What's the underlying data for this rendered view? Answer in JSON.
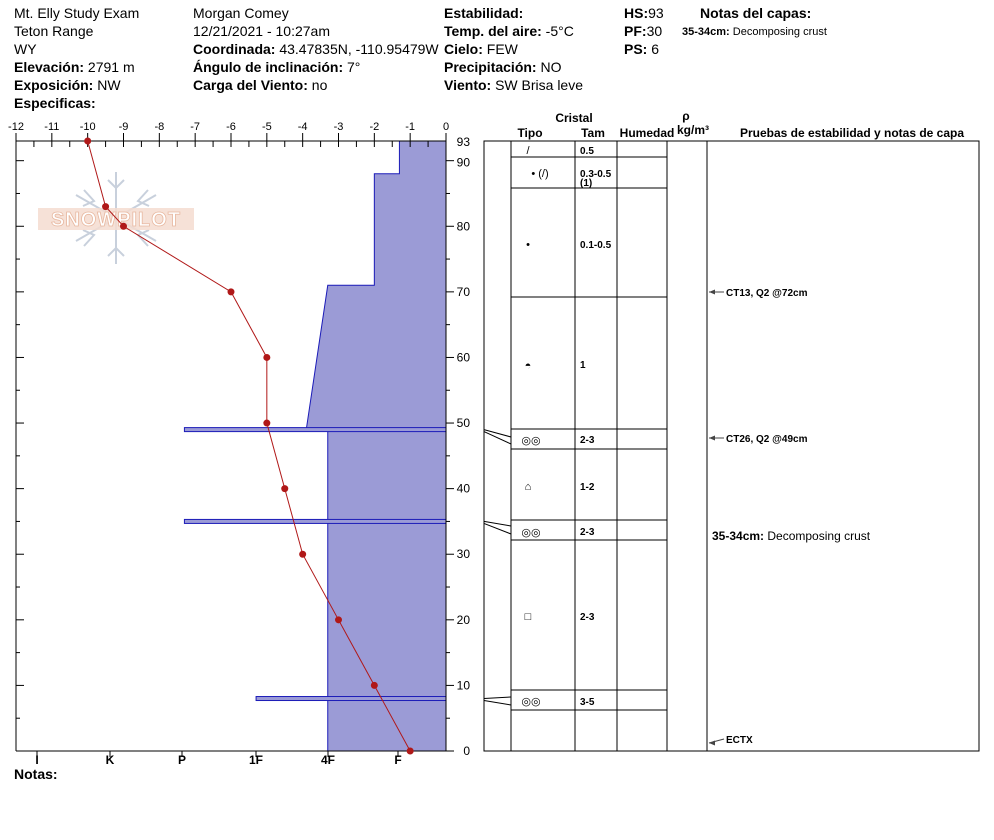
{
  "header": {
    "site": "Mt. Elly Study Exam",
    "range": "Teton Range",
    "state": "WY",
    "elevation_label": "Elevación:",
    "elevation_value": "2791 m",
    "aspect_label": "Exposición:",
    "aspect_value": "NW",
    "specifics_label": "Especificas:",
    "observer": "Morgan Comey",
    "datetime": "12/21/2021 - 10:27am",
    "coord_label": "Coordinada:",
    "coord_value": "43.47835N, -110.95479W",
    "slope_label": "Ángulo de inclinación:",
    "slope_value": "7°",
    "wind_load_label": "Carga del Viento:",
    "wind_load_value": "no",
    "stability_label": "Estabilidad:",
    "air_temp_label": "Temp. del aire:",
    "air_temp_value": "-5°C",
    "sky_label": "Cielo:",
    "sky_value": "FEW",
    "precip_label": "Precipitación:",
    "precip_value": "NO",
    "wind_label": "Viento:",
    "wind_value": "SW Brisa leve",
    "hs_label": "HS:",
    "hs_value": "93",
    "pf_label": "PF:",
    "pf_value": "30",
    "ps_label": "PS:",
    "ps_value": "6",
    "layer_notes_title": "Notas del capas:",
    "layer_notes_first": "35-34cm:",
    "layer_notes_first_text": "Decomposing crust"
  },
  "logo_text": "SNOWPILOT",
  "footer": {
    "notes_label": "Notas:"
  },
  "columns": {
    "crystal": "Cristal",
    "type": "Tipo",
    "size": "Tam",
    "moisture": "Humedad",
    "density_symbol": "ρ",
    "density_unit": "kg/m³",
    "tests_header": "Pruebas de estabilidad y notas de capa"
  },
  "chart_data": {
    "type": "snow_profile",
    "temperature_axis": {
      "ticks": [
        "-12",
        "-11",
        "-10",
        "-9",
        "-8",
        "-7",
        "-6",
        "-5",
        "-4",
        "-3",
        "-2",
        "-1",
        "0"
      ],
      "range": [
        -12,
        0
      ]
    },
    "hardness_axis": {
      "ticks": [
        "I",
        "K",
        "P",
        "1F",
        "4F",
        "F"
      ]
    },
    "height_axis": {
      "ticks": [
        "0",
        "10",
        "20",
        "30",
        "40",
        "50",
        "60",
        "70",
        "80",
        "90",
        "93"
      ],
      "range": [
        0,
        93
      ]
    },
    "temperature_profile": [
      {
        "h": 93,
        "t": -10.0
      },
      {
        "h": 83,
        "t": -9.5
      },
      {
        "h": 80,
        "t": -9.0
      },
      {
        "h": 70,
        "t": -6.0
      },
      {
        "h": 60,
        "t": -5.0
      },
      {
        "h": 50,
        "t": -5.0
      },
      {
        "h": 40,
        "t": -4.5
      },
      {
        "h": 30,
        "t": -4.0
      },
      {
        "h": 20,
        "t": -3.0
      },
      {
        "h": 10,
        "t": -2.0
      },
      {
        "h": 0,
        "t": -1.0
      }
    ],
    "hardness_profile": [
      {
        "top": 93,
        "bottom": 88,
        "t_top": -1.3,
        "t_bottom": -1.3
      },
      {
        "top": 88,
        "bottom": 71,
        "t_top": -2.0,
        "t_bottom": -2.0
      },
      {
        "top": 71,
        "bottom": 49,
        "t_top": -3.3,
        "t_bottom": -3.9
      },
      {
        "top": 49,
        "bottom": 0,
        "t_top": -3.3,
        "t_bottom": -3.3
      }
    ],
    "thin_layers": [
      {
        "h": 49,
        "t": -7.3
      },
      {
        "h": 35,
        "t": -7.3
      },
      {
        "h": 8,
        "t": -5.3
      }
    ],
    "layers": [
      {
        "top": 93,
        "bottom": 88,
        "type": "/",
        "size": "0.5"
      },
      {
        "top": 88,
        "bottom": 71,
        "type": "• (/)",
        "size": "0.3-0.5 (1)"
      },
      {
        "top": 71,
        "bottom": 50,
        "type": "•",
        "size": "0.1-0.5"
      },
      {
        "top": 50,
        "bottom": 49,
        "type": "◓",
        "size": "1"
      },
      {
        "top": 49,
        "bottom": 35,
        "type": "◎◎",
        "size": "2-3"
      },
      {
        "top": 35,
        "bottom": 34,
        "type": "⌂",
        "size": "1-2"
      },
      {
        "top": 34,
        "bottom": 8,
        "type": "◎◎",
        "size": "2-3"
      },
      {
        "top": 8,
        "bottom": 0,
        "type": "□",
        "size": "2-3"
      },
      {
        "top": 8,
        "bottom": 6,
        "type": "◎◎",
        "size": "3-5"
      }
    ],
    "tests": [
      {
        "h": 72,
        "text": "CT13, Q2 @72cm"
      },
      {
        "h": 49,
        "text": "CT26, Q2 @49cm"
      },
      {
        "h": 0,
        "text": "ECTX"
      }
    ],
    "layer_notes": [
      {
        "label": "35-34cm:",
        "text": "Decomposing crust"
      }
    ]
  }
}
